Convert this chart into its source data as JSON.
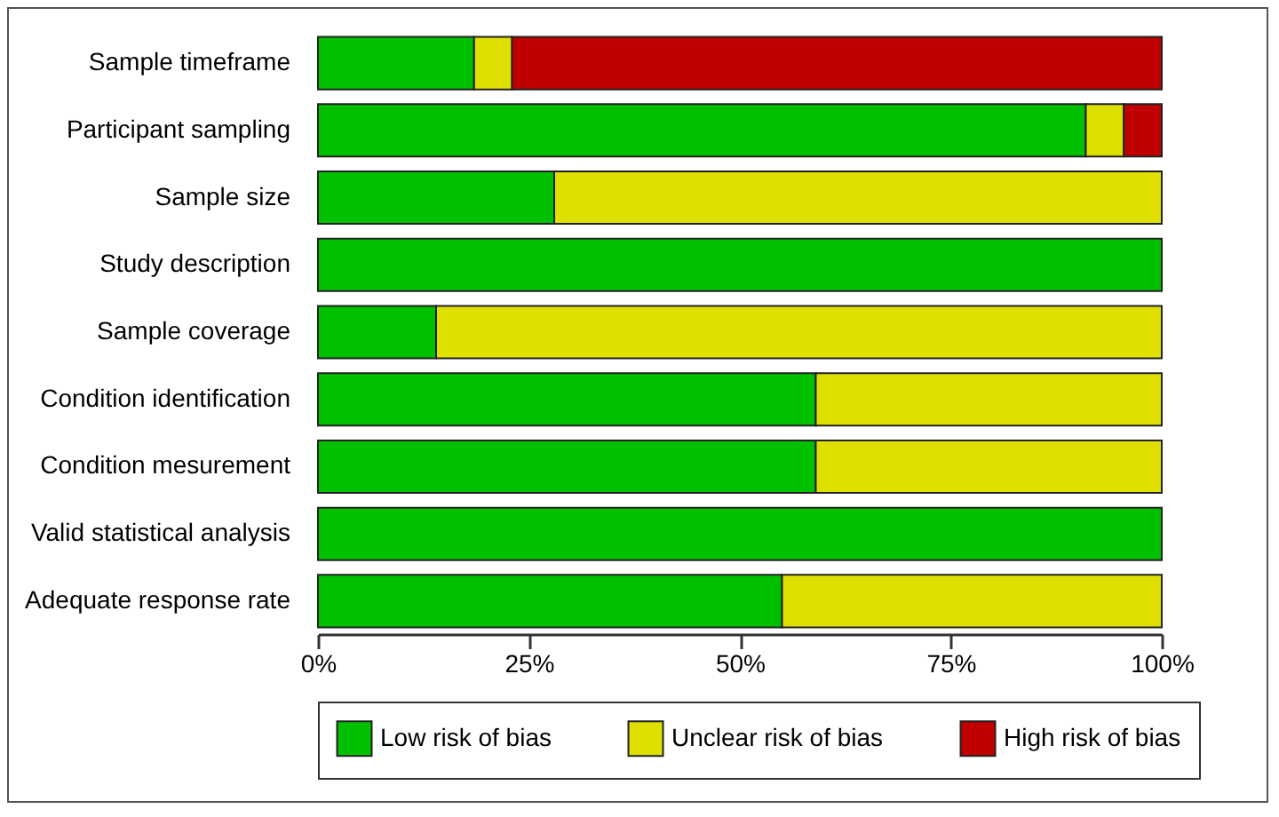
{
  "chart_data": {
    "type": "bar",
    "orientation": "horizontal",
    "stacked": true,
    "categories": [
      "Sample timeframe",
      "Participant sampling",
      "Sample size",
      "Study description",
      "Sample coverage",
      "Condition identification",
      "Condition mesurement",
      "Valid statistical analysis",
      "Adequate response rate"
    ],
    "series": [
      {
        "name": "Low risk of bias",
        "color": "#00c000",
        "values": [
          18.5,
          91,
          28,
          100,
          14,
          59,
          59,
          100,
          55
        ]
      },
      {
        "name": "Unclear risk of bias",
        "color": "#e0e000",
        "values": [
          4.5,
          4.5,
          72,
          0,
          86,
          41,
          41,
          0,
          45
        ]
      },
      {
        "name": "High risk of bias",
        "color": "#c00000",
        "values": [
          77,
          4.5,
          0,
          0,
          0,
          0,
          0,
          0,
          0
        ]
      }
    ],
    "xlim": [
      0,
      100
    ],
    "xticks": [
      {
        "value": 0,
        "label": "0%"
      },
      {
        "value": 25,
        "label": "25%"
      },
      {
        "value": 50,
        "label": "50%"
      },
      {
        "value": 75,
        "label": "75%"
      },
      {
        "value": 100,
        "label": "100%"
      }
    ],
    "grid": false,
    "legend": "bottom"
  }
}
